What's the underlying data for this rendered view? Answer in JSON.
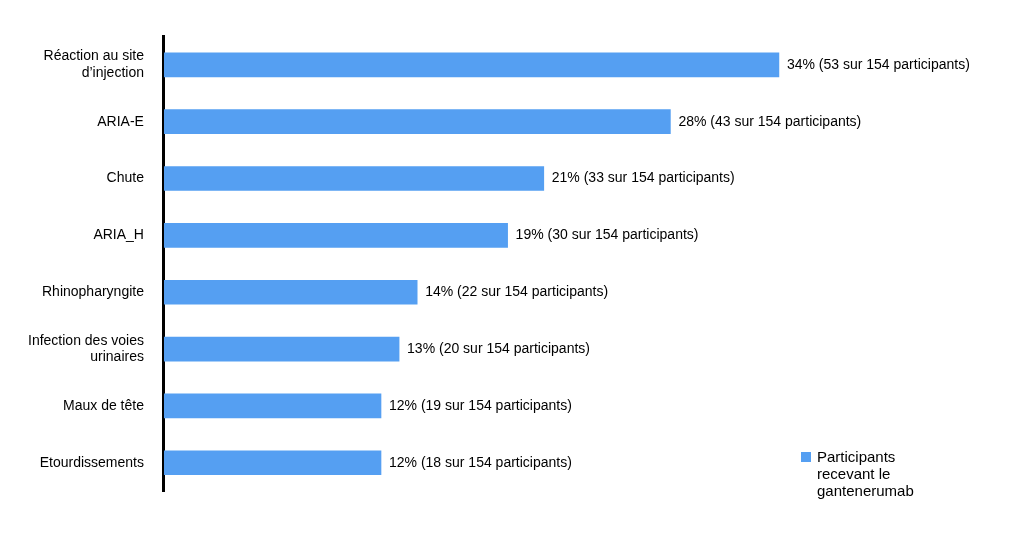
{
  "chart_data": {
    "type": "bar",
    "orientation": "horizontal",
    "categories": [
      "Réaction au site d’injection",
      "ARIA-E",
      "Chute",
      "ARIA_H",
      "Rhinopharyngite",
      "Infection des voies urinaires",
      "Maux de tête",
      "Etourdissements"
    ],
    "series": [
      {
        "name": "Participants recevant le gantenerumab",
        "color": "#559ff2",
        "values": [
          34,
          28,
          21,
          19,
          14,
          13,
          12,
          12
        ],
        "value_labels": [
          "34% (53 sur 154 participants)",
          "28% (43 sur 154 participants)",
          "21% (33 sur 154 participants)",
          "19% (30 sur 154 participants)",
          "14% (22 sur 154 participants)",
          "13% (20 sur 154 participants)",
          "12% (19 sur 154 participants)",
          "12% (18 sur 154 participants)"
        ]
      }
    ],
    "legend": "bottom right"
  }
}
